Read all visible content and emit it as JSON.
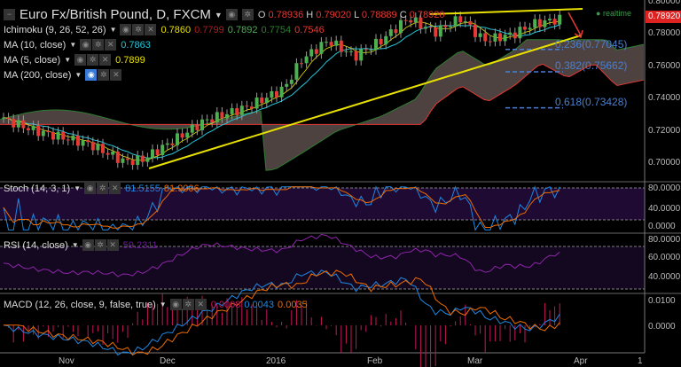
{
  "header": {
    "title": "Euro Fx/British Pound, D, FXCM",
    "o_label": "O",
    "o": "0.78936",
    "h_label": "H",
    "h": "0.79020",
    "l_label": "L",
    "l": "0.78889",
    "c_label": "C",
    "c": "0.78920"
  },
  "indicators": {
    "ichimoku": {
      "label": "Ichimoku (9, 26, 52, 26)",
      "v1": "0.7860",
      "v2": "0.7799",
      "v3": "0.7892",
      "v4": "0.7754",
      "v5": "0.7546"
    },
    "ma10": {
      "label": "MA (10, close)",
      "value": "0.7863"
    },
    "ma5": {
      "label": "MA (5, close)",
      "value": "0.7899"
    },
    "ma200": {
      "label": "MA (200, close)"
    },
    "stoch": {
      "label": "Stoch (14, 3, 1)",
      "k": "81.5155",
      "d": "81.9006"
    },
    "rsi": {
      "label": "RSI (14, close)",
      "value": "59.2311"
    },
    "macd": {
      "label": "MACD (12, 26, close, 9, false, true)",
      "hist": "0.0008",
      "macd": "0.0043",
      "signal": "0.0035"
    }
  },
  "status": {
    "realtime": "realtime",
    "current_price": "0.78920"
  },
  "fib": [
    {
      "label": "0.236(0.77045)",
      "price": 0.77045
    },
    {
      "label": "0.382(0.75662)",
      "price": 0.75662
    },
    {
      "label": "0.618(0.73428)",
      "price": 0.73428
    }
  ],
  "price_axis": [
    "0.80000",
    "0.78000",
    "0.76000",
    "0.74000",
    "0.72000",
    "0.70000"
  ],
  "stoch_axis": [
    "80.0000",
    "40.0000",
    "0.0000"
  ],
  "rsi_axis": [
    "80.0000",
    "60.0000",
    "40.0000"
  ],
  "macd_axis": [
    "0.0100",
    "0.0000"
  ],
  "time_axis": [
    "Nov",
    "Dec",
    "2016",
    "Feb",
    "Mar",
    "Apr",
    "1"
  ],
  "colors": {
    "up": "#4caf50",
    "down": "#e53935",
    "ma5": "#e8e000",
    "ma10": "#26c6da",
    "cloud": "#5a4e4a"
  },
  "chart_data": {
    "type": "candlestick",
    "approx_close_path": [
      [
        0,
        0.728
      ],
      [
        40,
        0.72
      ],
      [
        100,
        0.712
      ],
      [
        140,
        0.701
      ],
      [
        160,
        0.702
      ],
      [
        190,
        0.712
      ],
      [
        230,
        0.726
      ],
      [
        280,
        0.735
      ],
      [
        320,
        0.746
      ],
      [
        340,
        0.764
      ],
      [
        370,
        0.776
      ],
      [
        400,
        0.766
      ],
      [
        430,
        0.776
      ],
      [
        460,
        0.79
      ],
      [
        490,
        0.781
      ],
      [
        520,
        0.79
      ],
      [
        545,
        0.776
      ],
      [
        580,
        0.78
      ],
      [
        600,
        0.786
      ],
      [
        630,
        0.7892
      ]
    ]
  }
}
